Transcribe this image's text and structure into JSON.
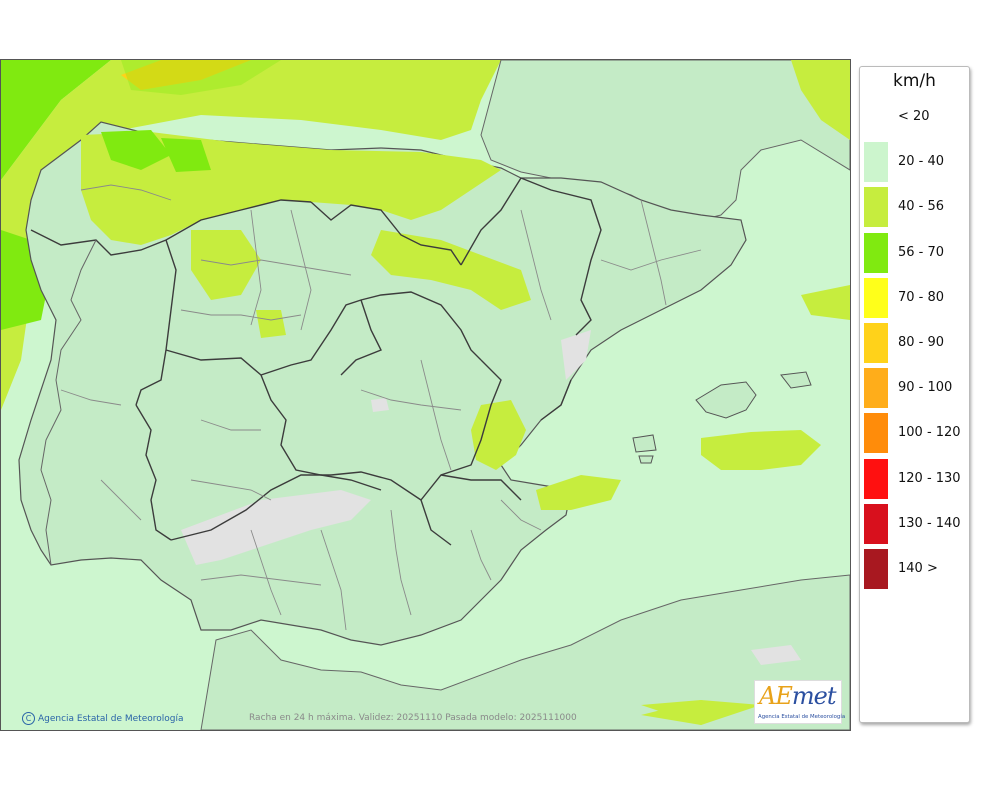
{
  "legend": {
    "unit": "km/h",
    "items": [
      {
        "label": "< 20",
        "color": "#ffffff"
      },
      {
        "label": "20 - 40",
        "color": "#ccf5cd"
      },
      {
        "label": "40 - 56",
        "color": "#c6ed3e"
      },
      {
        "label": "56 - 70",
        "color": "#80ea10"
      },
      {
        "label": "70 - 80",
        "color": "#ffff1a"
      },
      {
        "label": "80 - 90",
        "color": "#ffd21a"
      },
      {
        "label": "90 - 100",
        "color": "#ffad1a"
      },
      {
        "label": "100 - 120",
        "color": "#ff8c0a"
      },
      {
        "label": "120 - 130",
        "color": "#ff1010"
      },
      {
        "label": "130 - 140",
        "color": "#d8101d"
      },
      {
        "label": "140 >",
        "color": "#a81820"
      }
    ]
  },
  "footer": {
    "copyright": "Agencia Estatal de Meteorología",
    "caption": "Racha en 24 h máxima. Validez: 20251110 Pasada modelo: 2025111000"
  },
  "logo": {
    "mark_a": "A",
    "mark_e": "E",
    "mark_rest": "met",
    "subtitle": "Agencia Estatal de Meteorología"
  },
  "colors": {
    "sea": "#cdf6cf",
    "land": "#c4ebc6",
    "gust_40_56": "#c6ed3e",
    "gust_56_70": "#80ea10",
    "gust_80_90": "#ffd21a",
    "calm": "#e2e2e2",
    "borders": "#3c3c3c"
  }
}
